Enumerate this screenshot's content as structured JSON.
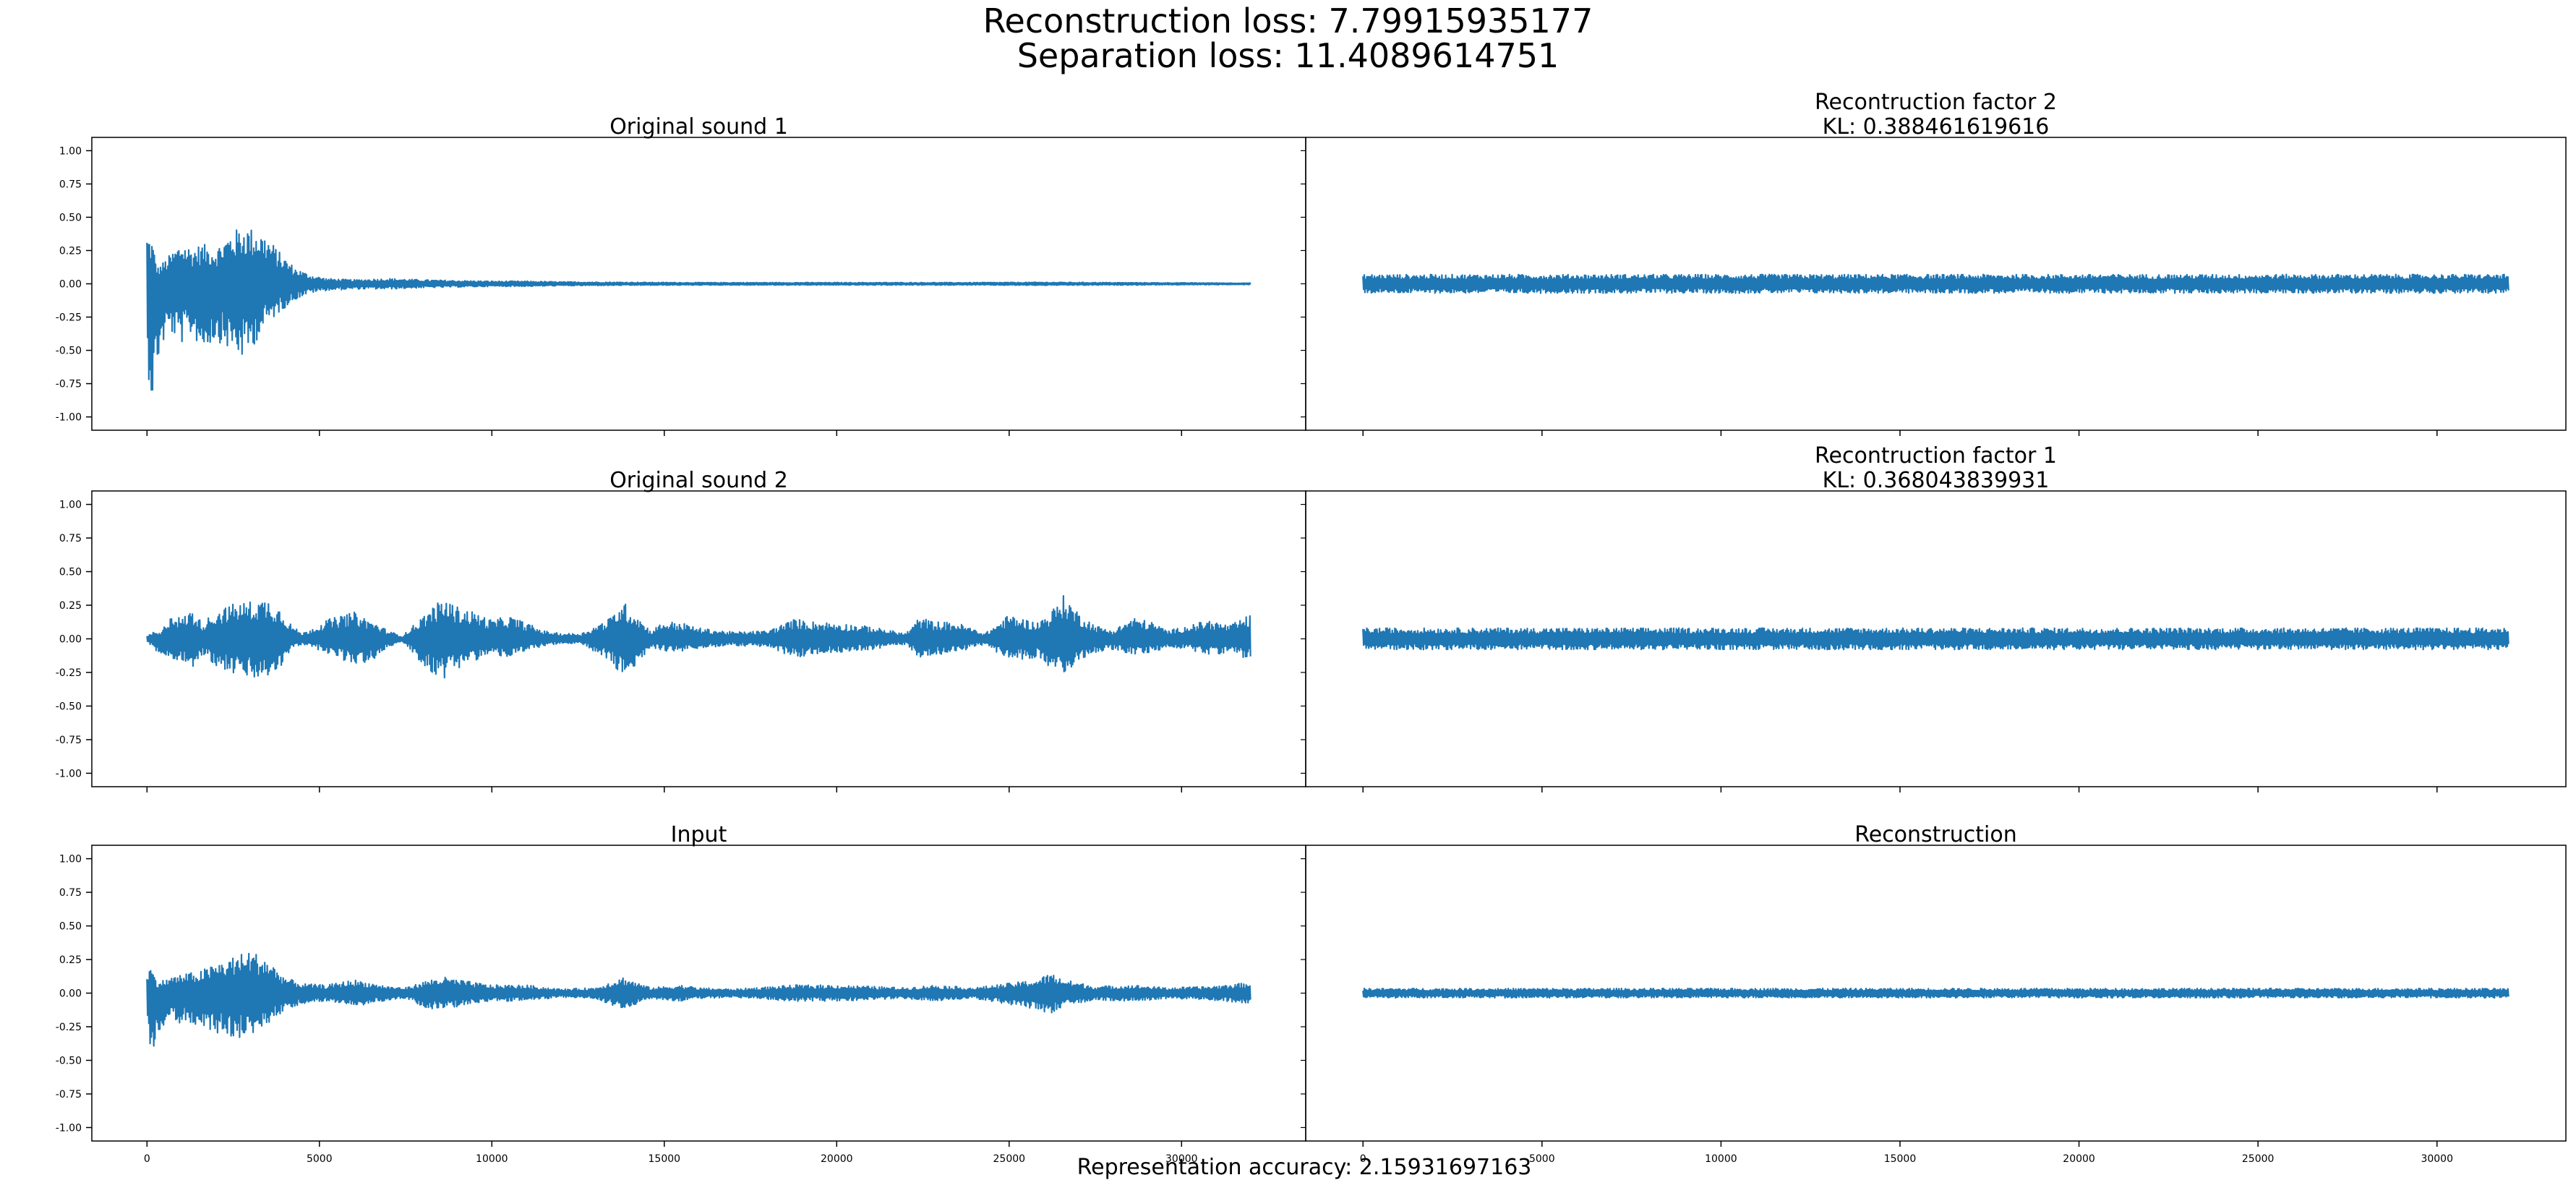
{
  "figure": {
    "suptitle_line1": "Reconstruction loss: 7.79915935177",
    "suptitle_line2": "Separation loss: 11.4089614751",
    "footer": "Representation accuracy: 2.15931697163"
  },
  "colors": {
    "line": "#1f77b4",
    "axes": "#000000",
    "background": "#ffffff"
  },
  "chart_data": [
    {
      "type": "line",
      "panel": "top-left",
      "title": "Original sound 1",
      "subtitle": "",
      "xlim": [
        -1600,
        33600
      ],
      "ylim": [
        -1.1,
        1.1
      ],
      "yticks": [
        1.0,
        0.75,
        0.5,
        0.25,
        0.0,
        -0.25,
        -0.5,
        -0.75,
        -1.0
      ],
      "ytick_labels": [
        "1.00",
        "0.75",
        "0.50",
        "0.25",
        "0.00",
        "-0.25",
        "-0.50",
        "-0.75",
        "-1.00"
      ],
      "xticks": [
        0,
        5000,
        10000,
        15000,
        20000,
        25000,
        30000
      ],
      "xtick_labels": [],
      "series": [
        {
          "n_samples": 32000,
          "envelope": {
            "x": [
              0,
              150,
              300,
              600,
              1000,
              1300,
              1600,
              2000,
              2400,
              2800,
              3000,
              3200,
              3500,
              3900,
              4300,
              4700,
              5200,
              6000,
              7000,
              8000,
              9000,
              10000,
              11000,
              12000,
              14000,
              16000,
              18000,
              20000,
              22000,
              24000,
              26000,
              28000,
              30000,
              32000
            ],
            "upper": [
              0.38,
              0.33,
              0.12,
              0.2,
              0.32,
              0.27,
              0.3,
              0.27,
              0.38,
              0.44,
              0.42,
              0.41,
              0.35,
              0.22,
              0.12,
              0.07,
              0.04,
              0.03,
              0.04,
              0.03,
              0.025,
              0.02,
              0.02,
              0.015,
              0.012,
              0.01,
              0.01,
              0.01,
              0.01,
              0.01,
              0.012,
              0.01,
              0.008,
              0.006
            ],
            "lower": [
              -0.62,
              -0.9,
              -0.6,
              -0.35,
              -0.45,
              -0.38,
              -0.5,
              -0.42,
              -0.5,
              -0.57,
              -0.5,
              -0.42,
              -0.3,
              -0.2,
              -0.12,
              -0.07,
              -0.05,
              -0.04,
              -0.04,
              -0.03,
              -0.025,
              -0.02,
              -0.02,
              -0.015,
              -0.012,
              -0.01,
              -0.01,
              -0.01,
              -0.01,
              -0.01,
              -0.012,
              -0.01,
              -0.008,
              -0.006
            ]
          }
        }
      ]
    },
    {
      "type": "line",
      "panel": "top-right",
      "title": "Recontruction factor 2",
      "subtitle": "KL: 0.388461619616",
      "xlim": [
        -1600,
        33600
      ],
      "ylim": [
        -1.1,
        1.1
      ],
      "xticks": [
        0,
        5000,
        10000,
        15000,
        20000,
        25000,
        30000
      ],
      "xtick_labels": [],
      "series": [
        {
          "n_samples": 32000,
          "envelope": {
            "x": [
              0,
              32000
            ],
            "upper": [
              0.07,
              0.07
            ],
            "lower": [
              -0.07,
              -0.07
            ]
          }
        }
      ]
    },
    {
      "type": "line",
      "panel": "middle-left",
      "title": "Original sound 2",
      "subtitle": "",
      "xlim": [
        -1600,
        33600
      ],
      "ylim": [
        -1.1,
        1.1
      ],
      "yticks": [
        1.0,
        0.75,
        0.5,
        0.25,
        0.0,
        -0.25,
        -0.5,
        -0.75,
        -1.0
      ],
      "ytick_labels": [
        "1.00",
        "0.75",
        "0.50",
        "0.25",
        "0.00",
        "-0.25",
        "-0.50",
        "-0.75",
        "-1.00"
      ],
      "xticks": [
        0,
        5000,
        10000,
        15000,
        20000,
        25000,
        30000
      ],
      "xtick_labels": [],
      "series": [
        {
          "n_samples": 32000,
          "envelope": {
            "x": [
              0,
              200,
              400,
              700,
              1000,
              1300,
              1600,
              2000,
              2500,
              3000,
              3500,
              3900,
              4200,
              4500,
              5200,
              6000,
              6600,
              7000,
              7400,
              8200,
              8600,
              9000,
              9500,
              10000,
              10500,
              11000,
              11500,
              12000,
              12600,
              13400,
              13800,
              14200,
              14600,
              15000,
              15500,
              16000,
              17000,
              18000,
              18800,
              19200,
              20000,
              21000,
              22000,
              22400,
              22800,
              23500,
              24300,
              25000,
              25800,
              26200,
              26600,
              27000,
              27500,
              28000,
              28600,
              29200,
              29600,
              30200,
              30800,
              31400,
              32000
            ],
            "upper": [
              0.02,
              0.05,
              0.04,
              0.2,
              0.15,
              0.22,
              0.12,
              0.21,
              0.26,
              0.28,
              0.3,
              0.22,
              0.1,
              0.04,
              0.14,
              0.2,
              0.12,
              0.06,
              0.02,
              0.22,
              0.3,
              0.24,
              0.2,
              0.14,
              0.17,
              0.12,
              0.06,
              0.04,
              0.04,
              0.15,
              0.28,
              0.18,
              0.06,
              0.13,
              0.12,
              0.08,
              0.05,
              0.06,
              0.15,
              0.13,
              0.12,
              0.09,
              0.04,
              0.16,
              0.13,
              0.12,
              0.04,
              0.18,
              0.12,
              0.2,
              0.33,
              0.2,
              0.1,
              0.06,
              0.16,
              0.12,
              0.06,
              0.1,
              0.14,
              0.1,
              0.18
            ],
            "lower": [
              -0.02,
              -0.08,
              -0.12,
              -0.16,
              -0.15,
              -0.22,
              -0.12,
              -0.2,
              -0.26,
              -0.3,
              -0.3,
              -0.2,
              -0.08,
              -0.04,
              -0.1,
              -0.2,
              -0.16,
              -0.06,
              -0.02,
              -0.25,
              -0.3,
              -0.22,
              -0.16,
              -0.12,
              -0.14,
              -0.1,
              -0.05,
              -0.04,
              -0.04,
              -0.16,
              -0.3,
              -0.2,
              -0.06,
              -0.09,
              -0.1,
              -0.07,
              -0.05,
              -0.06,
              -0.15,
              -0.12,
              -0.1,
              -0.08,
              -0.04,
              -0.14,
              -0.12,
              -0.1,
              -0.04,
              -0.16,
              -0.14,
              -0.22,
              -0.3,
              -0.16,
              -0.1,
              -0.08,
              -0.12,
              -0.1,
              -0.06,
              -0.08,
              -0.12,
              -0.1,
              -0.16
            ]
          }
        }
      ]
    },
    {
      "type": "line",
      "panel": "middle-right",
      "title": "Recontruction factor 1",
      "subtitle": "KL: 0.368043839931",
      "xlim": [
        -1600,
        33600
      ],
      "ylim": [
        -1.1,
        1.1
      ],
      "xticks": [
        0,
        5000,
        10000,
        15000,
        20000,
        25000,
        30000
      ],
      "xtick_labels": [],
      "series": [
        {
          "n_samples": 32000,
          "envelope": {
            "x": [
              0,
              32000
            ],
            "upper": [
              0.08,
              0.08
            ],
            "lower": [
              -0.08,
              -0.08
            ]
          }
        }
      ]
    },
    {
      "type": "line",
      "panel": "bottom-left",
      "title": "Input",
      "subtitle": "",
      "xlim": [
        -1600,
        33600
      ],
      "ylim": [
        -1.1,
        1.1
      ],
      "yticks": [
        1.0,
        0.75,
        0.5,
        0.25,
        0.0,
        -0.25,
        -0.5,
        -0.75,
        -1.0
      ],
      "ytick_labels": [
        "1.00",
        "0.75",
        "0.50",
        "0.25",
        "0.00",
        "-0.25",
        "-0.50",
        "-0.75",
        "-1.00"
      ],
      "xticks": [
        0,
        5000,
        10000,
        15000,
        20000,
        25000,
        30000
      ],
      "xtick_labels": [
        "0",
        "5000",
        "10000",
        "15000",
        "20000",
        "25000",
        "30000"
      ],
      "series": [
        {
          "n_samples": 32000,
          "envelope": {
            "x": [
              0,
              150,
              300,
              700,
              1000,
              1500,
              2000,
              2500,
              3000,
              3500,
              4000,
              4500,
              5200,
              6000,
              7000,
              7500,
              8200,
              8600,
              9000,
              10000,
              11000,
              12000,
              13000,
              13800,
              14200,
              14600,
              15500,
              16000,
              17000,
              18800,
              20000,
              22000,
              22800,
              24000,
              25800,
              26200,
              26600,
              27500,
              28600,
              29600,
              30800,
              32000
            ],
            "upper": [
              0.2,
              0.18,
              0.08,
              0.12,
              0.14,
              0.16,
              0.22,
              0.27,
              0.32,
              0.25,
              0.12,
              0.07,
              0.06,
              0.1,
              0.05,
              0.04,
              0.1,
              0.12,
              0.1,
              0.06,
              0.06,
              0.03,
              0.04,
              0.12,
              0.08,
              0.04,
              0.06,
              0.04,
              0.03,
              0.06,
              0.06,
              0.04,
              0.06,
              0.04,
              0.1,
              0.15,
              0.1,
              0.05,
              0.06,
              0.04,
              0.05,
              0.08
            ],
            "lower": [
              -0.32,
              -0.45,
              -0.3,
              -0.22,
              -0.22,
              -0.25,
              -0.3,
              -0.35,
              -0.32,
              -0.25,
              -0.12,
              -0.08,
              -0.06,
              -0.1,
              -0.05,
              -0.04,
              -0.12,
              -0.12,
              -0.1,
              -0.06,
              -0.06,
              -0.03,
              -0.04,
              -0.12,
              -0.08,
              -0.04,
              -0.06,
              -0.04,
              -0.03,
              -0.06,
              -0.06,
              -0.04,
              -0.06,
              -0.04,
              -0.12,
              -0.16,
              -0.1,
              -0.05,
              -0.06,
              -0.04,
              -0.05,
              -0.08
            ]
          }
        }
      ]
    },
    {
      "type": "line",
      "panel": "bottom-right",
      "title": "Reconstruction",
      "subtitle": "",
      "xlim": [
        -1600,
        33600
      ],
      "ylim": [
        -1.1,
        1.1
      ],
      "xticks": [
        0,
        5000,
        10000,
        15000,
        20000,
        25000,
        30000
      ],
      "xtick_labels": [
        "0",
        "5000",
        "10000",
        "15000",
        "20000",
        "25000",
        "30000"
      ],
      "series": [
        {
          "n_samples": 32000,
          "envelope": {
            "x": [
              0,
              32000
            ],
            "upper": [
              0.035,
              0.035
            ],
            "lower": [
              -0.035,
              -0.035
            ]
          }
        }
      ]
    }
  ]
}
